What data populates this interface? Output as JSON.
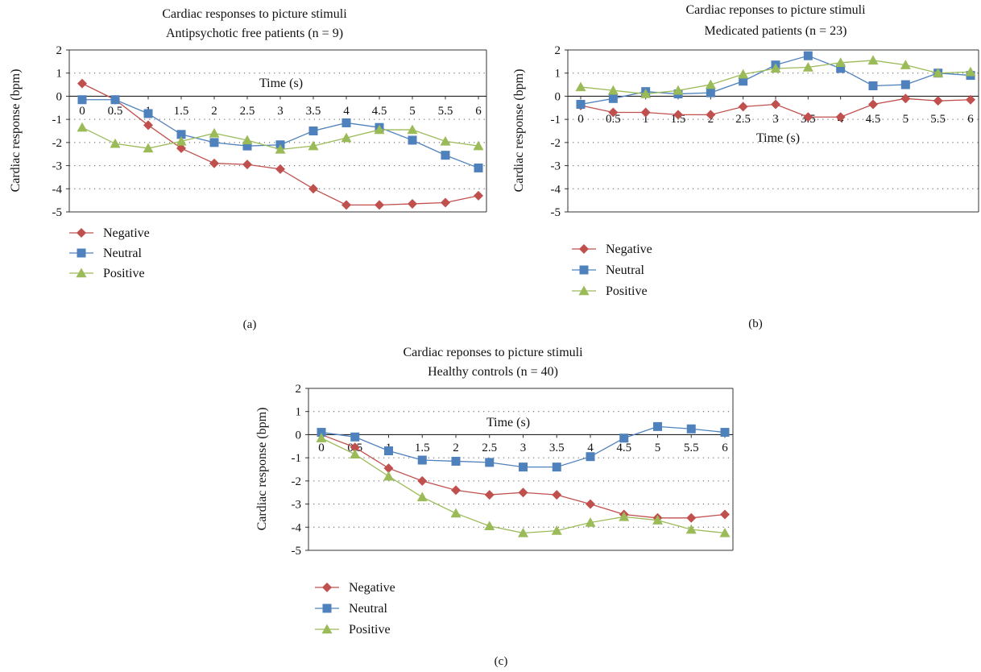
{
  "figure": {
    "panel_labels": [
      "(a)",
      "(b)",
      "(c)"
    ]
  },
  "chart_data": [
    {
      "type": "line",
      "title": "Cardiac responses to picture stimuli",
      "subtitle": "Antipsychotic free patients (n = 9)",
      "xlabel": "Time (s)",
      "ylabel": "Cardiac response (bpm)",
      "ylim": [
        -5,
        2
      ],
      "yticks": [
        2,
        1,
        0,
        -1,
        -2,
        -3,
        -4,
        -5
      ],
      "categories": [
        "0",
        "0.5",
        "1",
        "1.5",
        "2",
        "2.5",
        "3",
        "3.5",
        "4",
        "4.5",
        "5",
        "5.5",
        "6"
      ],
      "grid": "dotted horizontal",
      "legend": "bottom-left",
      "series": [
        {
          "name": "Negative",
          "color": "#c0504d",
          "marker": "diamond",
          "values": [
            0.55,
            -0.15,
            -1.25,
            -2.25,
            -2.9,
            -2.95,
            -3.15,
            -4.0,
            -4.7,
            -4.7,
            -4.65,
            -4.6,
            -4.3
          ]
        },
        {
          "name": "Neutral",
          "color": "#4f81bd",
          "marker": "square",
          "values": [
            -0.15,
            -0.15,
            -0.75,
            -1.65,
            -2.0,
            -2.15,
            -2.1,
            -1.5,
            -1.15,
            -1.35,
            -1.9,
            -2.55,
            -3.1
          ]
        },
        {
          "name": "Positive",
          "color": "#9bbb59",
          "marker": "triangle",
          "values": [
            -1.35,
            -2.05,
            -2.25,
            -1.95,
            -1.6,
            -1.9,
            -2.3,
            -2.15,
            -1.8,
            -1.45,
            -1.45,
            -1.95,
            -2.15
          ]
        }
      ]
    },
    {
      "type": "line",
      "title": "Cardiac reponses to picture stimuli",
      "subtitle": "Medicated patients (n = 23)",
      "xlabel": "Time (s)",
      "ylabel": "Cardiac response (bpm)",
      "ylim": [
        -5,
        2
      ],
      "yticks": [
        2,
        1,
        0,
        -1,
        -2,
        -3,
        -4,
        -5
      ],
      "categories": [
        "0",
        "0.5",
        "1",
        "1.5",
        "2",
        "2.5",
        "3",
        "3.5",
        "4",
        "4.5",
        "5",
        "5.5",
        "6"
      ],
      "grid": "dotted horizontal",
      "legend": "bottom-left",
      "series": [
        {
          "name": "Negative",
          "color": "#c0504d",
          "marker": "diamond",
          "values": [
            -0.4,
            -0.7,
            -0.7,
            -0.8,
            -0.8,
            -0.45,
            -0.35,
            -0.9,
            -0.9,
            -0.35,
            -0.1,
            -0.2,
            -0.15
          ]
        },
        {
          "name": "Neutral",
          "color": "#4f81bd",
          "marker": "square",
          "values": [
            -0.35,
            -0.1,
            0.2,
            0.1,
            0.15,
            0.65,
            1.35,
            1.75,
            1.2,
            0.45,
            0.5,
            1.0,
            0.9
          ]
        },
        {
          "name": "Positive",
          "color": "#9bbb59",
          "marker": "triangle",
          "values": [
            0.4,
            0.25,
            0.1,
            0.25,
            0.5,
            0.95,
            1.2,
            1.25,
            1.45,
            1.55,
            1.35,
            1.0,
            1.05
          ]
        }
      ]
    },
    {
      "type": "line",
      "title": "Cardiac reponses to picture stimuli",
      "subtitle": "Healthy controls (n = 40)",
      "xlabel": "Time (s)",
      "ylabel": "Cardiac response (bpm)",
      "ylim": [
        -5,
        2
      ],
      "yticks": [
        2,
        1,
        0,
        -1,
        -2,
        -3,
        -4,
        -5
      ],
      "categories": [
        "0",
        "0.5",
        "1",
        "1.5",
        "2",
        "2.5",
        "3",
        "3.5",
        "4",
        "4.5",
        "5",
        "5.5",
        "6"
      ],
      "grid": "dotted horizontal",
      "legend": "bottom-left",
      "series": [
        {
          "name": "Negative",
          "color": "#c0504d",
          "marker": "diamond",
          "values": [
            0.0,
            -0.55,
            -1.45,
            -2.0,
            -2.4,
            -2.6,
            -2.5,
            -2.6,
            -3.0,
            -3.45,
            -3.6,
            -3.6,
            -3.45
          ]
        },
        {
          "name": "Neutral",
          "color": "#4f81bd",
          "marker": "square",
          "values": [
            0.1,
            -0.1,
            -0.7,
            -1.1,
            -1.15,
            -1.2,
            -1.4,
            -1.4,
            -0.95,
            -0.15,
            0.35,
            0.25,
            0.1
          ]
        },
        {
          "name": "Positive",
          "color": "#9bbb59",
          "marker": "triangle",
          "values": [
            -0.15,
            -0.85,
            -1.8,
            -2.7,
            -3.4,
            -3.95,
            -4.25,
            -4.15,
            -3.8,
            -3.55,
            -3.7,
            -4.1,
            -4.25
          ]
        }
      ]
    }
  ]
}
